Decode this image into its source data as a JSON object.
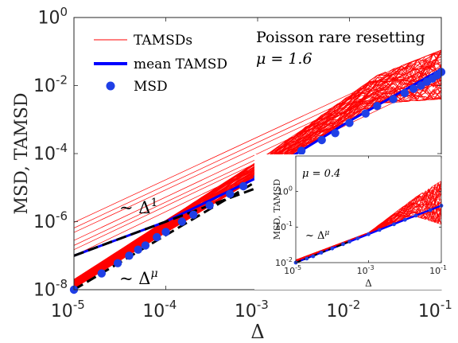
{
  "chart_data": [
    {
      "type": "line",
      "scale": {
        "x": "log",
        "y": "log"
      },
      "xlabel": "Δ",
      "ylabel": "MSD, TAMSD",
      "xlim": [
        1e-05,
        0.1
      ],
      "ylim": [
        1e-08,
        1
      ],
      "x_ticks": [
        {
          "value": 1e-05,
          "base": "10",
          "exp": "-5"
        },
        {
          "value": 0.0001,
          "base": "10",
          "exp": "-4"
        },
        {
          "value": 0.001,
          "base": "10",
          "exp": "-3"
        },
        {
          "value": 0.01,
          "base": "10",
          "exp": "-2"
        },
        {
          "value": 0.1,
          "base": "10",
          "exp": "-1"
        }
      ],
      "y_ticks": [
        {
          "value": 1e-08,
          "base": "10",
          "exp": "-8"
        },
        {
          "value": 1e-06,
          "base": "10",
          "exp": "-6"
        },
        {
          "value": 0.0001,
          "base": "10",
          "exp": "-4"
        },
        {
          "value": 0.01,
          "base": "10",
          "exp": "-2"
        },
        {
          "value": 1,
          "base": "10",
          "exp": "0"
        }
      ],
      "legend": {
        "placement": "top-left",
        "entries": [
          {
            "label": "TAMSDs",
            "style": "thin-line",
            "color": "#ff0000"
          },
          {
            "label": "mean TAMSD",
            "style": "thick-line",
            "color": "#0000ff"
          },
          {
            "label": "MSD",
            "style": "dot",
            "color": "#1f3fe6"
          }
        ]
      },
      "annotations": {
        "title_line1": "Poisson rare resetting",
        "title_line2": "μ = 1.6",
        "slope1_prefix": "~ Δ",
        "slope1_exp": "1",
        "slope_mu_prefix": "~ Δ",
        "slope_mu_exp": "μ"
      },
      "mu": 1.6,
      "series": [
        {
          "name": "TAMSDs",
          "color": "#ff0000",
          "description": "individual time-averaged MSD trajectories",
          "bundle_lower_envelope": [
            [
              1e-05,
              1.1e-08
            ],
            [
              0.001,
              2e-05
            ],
            [
              0.02,
              0.003
            ],
            [
              0.1,
              0.004
            ]
          ],
          "bundle_upper_envelope": [
            [
              1e-05,
              2e-08
            ],
            [
              0.001,
              6e-05
            ],
            [
              0.02,
              0.02
            ],
            [
              0.1,
              0.11
            ]
          ],
          "outliers": [
            [
              [
                1e-05,
                9.5e-07
              ],
              [
                0.1,
                0.1
              ]
            ],
            [
              [
                1e-05,
                6.5e-07
              ],
              [
                0.1,
                0.07
              ]
            ],
            [
              [
                1e-05,
                4.8e-07
              ],
              [
                0.1,
                0.05
              ]
            ],
            [
              [
                1e-05,
                2.8e-07
              ],
              [
                0.1,
                0.035
              ]
            ],
            [
              [
                1e-05,
                2e-07
              ],
              [
                0.1,
                0.025
              ]
            ],
            [
              [
                1e-05,
                1.5e-07
              ],
              [
                0.1,
                0.02
              ]
            ],
            [
              [
                1e-05,
                1e-07
              ],
              [
                0.1,
                0.015
              ]
            ]
          ]
        },
        {
          "name": "mean TAMSD",
          "color": "#0000ff",
          "points": [
            [
              1e-05,
              1e-07
            ],
            [
              0.0001,
              1e-06
            ],
            [
              0.001,
              2e-05
            ],
            [
              0.01,
              0.0009
            ],
            [
              0.1,
              0.03
            ]
          ]
        },
        {
          "name": "MSD",
          "color": "#1f3fe6",
          "points": [
            [
              1e-05,
              1e-08
            ],
            [
              2e-05,
              3e-08
            ],
            [
              3e-05,
              6e-08
            ],
            [
              4e-05,
              1e-07
            ],
            [
              5e-05,
              1.5e-07
            ],
            [
              6e-05,
              2e-07
            ],
            [
              8e-05,
              3.5e-07
            ],
            [
              0.0001,
              5e-07
            ],
            [
              0.00015,
              1e-06
            ],
            [
              0.0002,
              1.6e-06
            ],
            [
              0.0003,
              3e-06
            ],
            [
              0.0005,
              6.5e-06
            ],
            [
              0.0007,
              1.1e-05
            ],
            [
              0.001,
              2e-05
            ],
            [
              0.0015,
              4e-05
            ],
            [
              0.002,
              6e-05
            ],
            [
              0.003,
              0.00012
            ],
            [
              0.005,
              0.00025
            ],
            [
              0.007,
              0.0004
            ],
            [
              0.01,
              0.0008
            ],
            [
              0.015,
              0.0015
            ],
            [
              0.02,
              0.0025
            ],
            [
              0.03,
              0.004
            ],
            [
              0.04,
              0.006
            ],
            [
              0.05,
              0.008
            ],
            [
              0.06,
              0.01
            ],
            [
              0.07,
              0.013
            ],
            [
              0.08,
              0.016
            ],
            [
              0.09,
              0.02
            ],
            [
              0.1,
              0.025
            ]
          ]
        },
        {
          "name": "~ Δ^1",
          "style": "dashed-guide",
          "color": "#000000",
          "points": [
            [
              1e-05,
              1e-07
            ],
            [
              0.0009,
              9e-06
            ]
          ]
        },
        {
          "name": "~ Δ^μ",
          "style": "dashed-guide",
          "color": "#000000",
          "points": [
            [
              1e-05,
              1e-08
            ],
            [
              0.0009,
              1.35e-05
            ]
          ]
        }
      ]
    },
    {
      "type": "line",
      "role": "inset",
      "scale": {
        "x": "log",
        "y": "log"
      },
      "xlabel": "Δ",
      "ylabel": "MSD, TAMSD",
      "xlim": [
        1e-05,
        0.1
      ],
      "ylim": [
        0.01,
        10
      ],
      "x_ticks": [
        {
          "value": 1e-05,
          "base": "10",
          "exp": "-5"
        },
        {
          "value": 0.001,
          "base": "10",
          "exp": "-3"
        },
        {
          "value": 0.1,
          "base": "10",
          "exp": "-1"
        }
      ],
      "y_ticks": [
        {
          "value": 0.01,
          "base": "10",
          "exp": "-2"
        },
        {
          "value": 0.1,
          "base": "10",
          "exp": "-1"
        },
        {
          "value": 1,
          "base": "10",
          "exp": "0"
        }
      ],
      "annotations": {
        "title": "μ = 0.4",
        "slope_prefix": "~ Δ",
        "slope_exp": "μ"
      },
      "mu": 0.4,
      "series": [
        {
          "name": "TAMSDs",
          "color": "#ff0000",
          "bundle_lower_envelope": [
            [
              1e-05,
              0.01
            ],
            [
              0.001,
              0.065
            ],
            [
              0.02,
              0.2
            ],
            [
              0.1,
              0.12
            ]
          ],
          "bundle_upper_envelope": [
            [
              1e-05,
              0.012
            ],
            [
              0.001,
              0.07
            ],
            [
              0.02,
              0.7
            ],
            [
              0.1,
              2.0
            ]
          ]
        },
        {
          "name": "mean TAMSD",
          "color": "#0000ff",
          "points": [
            [
              1e-05,
              0.01
            ],
            [
              0.0001,
              0.025
            ],
            [
              0.001,
              0.063
            ],
            [
              0.01,
              0.16
            ],
            [
              0.1,
              0.4
            ]
          ]
        },
        {
          "name": "MSD",
          "color": "#1f3fe6",
          "points": [
            [
              1e-05,
              0.01
            ],
            [
              2e-05,
              0.013
            ],
            [
              3e-05,
              0.015
            ],
            [
              5e-05,
              0.019
            ],
            [
              0.0001,
              0.025
            ],
            [
              0.0002,
              0.033
            ],
            [
              0.0003,
              0.039
            ],
            [
              0.0005,
              0.048
            ],
            [
              0.001,
              0.063
            ],
            [
              0.002,
              0.083
            ],
            [
              0.005,
              0.12
            ],
            [
              0.01,
              0.16
            ],
            [
              0.02,
              0.21
            ],
            [
              0.05,
              0.3
            ],
            [
              0.1,
              0.4
            ]
          ]
        },
        {
          "name": "~ Δ^μ",
          "style": "dashed-guide",
          "color": "#000000",
          "points": [
            [
              1e-05,
              0.01
            ],
            [
              0.0003,
              0.039
            ]
          ]
        }
      ]
    }
  ]
}
